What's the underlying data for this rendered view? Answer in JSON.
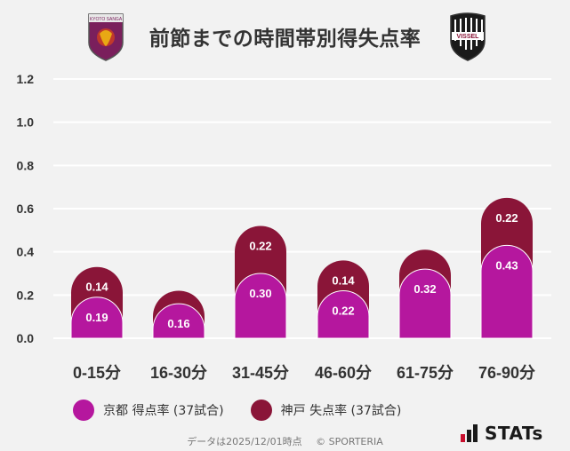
{
  "title": "前節までの時間帯別得失点率",
  "logos": [
    {
      "icon": "kyoto-sanga-crest-icon",
      "text": "KYOTO SANGA"
    },
    {
      "icon": "vissel-kobe-crest-icon",
      "text": "VISSEL"
    }
  ],
  "legend": [
    "京都 得点率 (37試合)",
    "神戸 失点率 (37試合)"
  ],
  "colors": {
    "kyoto": "#b5179e",
    "kobe": "#8a1538",
    "grid": "#ffffff",
    "background": "#f2f2f2"
  },
  "footer": {
    "note": "データは2025/12/01時点",
    "copyright": "© SPORTERIA"
  },
  "brand": "STATs",
  "chart_data": {
    "type": "bar",
    "stacked": true,
    "title": "前節までの時間帯別得失点率",
    "categories": [
      "0-15分",
      "16-30分",
      "31-45分",
      "46-60分",
      "61-75分",
      "76-90分"
    ],
    "series": [
      {
        "name": "京都 得点率 (37試合)",
        "values": [
          0.19,
          0.16,
          0.3,
          0.22,
          0.32,
          0.43
        ],
        "color": "#b5179e"
      },
      {
        "name": "神戸 失点率 (37試合)",
        "values": [
          0.14,
          0.06,
          0.22,
          0.14,
          0.09,
          0.22
        ],
        "color": "#8a1538",
        "labels": [
          "0.14",
          "",
          "0.22",
          "0.14",
          "",
          "0.22"
        ]
      }
    ],
    "ylim": [
      0,
      1.2
    ],
    "yticks": [
      "0.0",
      "0.2",
      "0.4",
      "0.6",
      "0.8",
      "1.0",
      "1.2"
    ],
    "grid": true,
    "legend_position": "bottom"
  }
}
